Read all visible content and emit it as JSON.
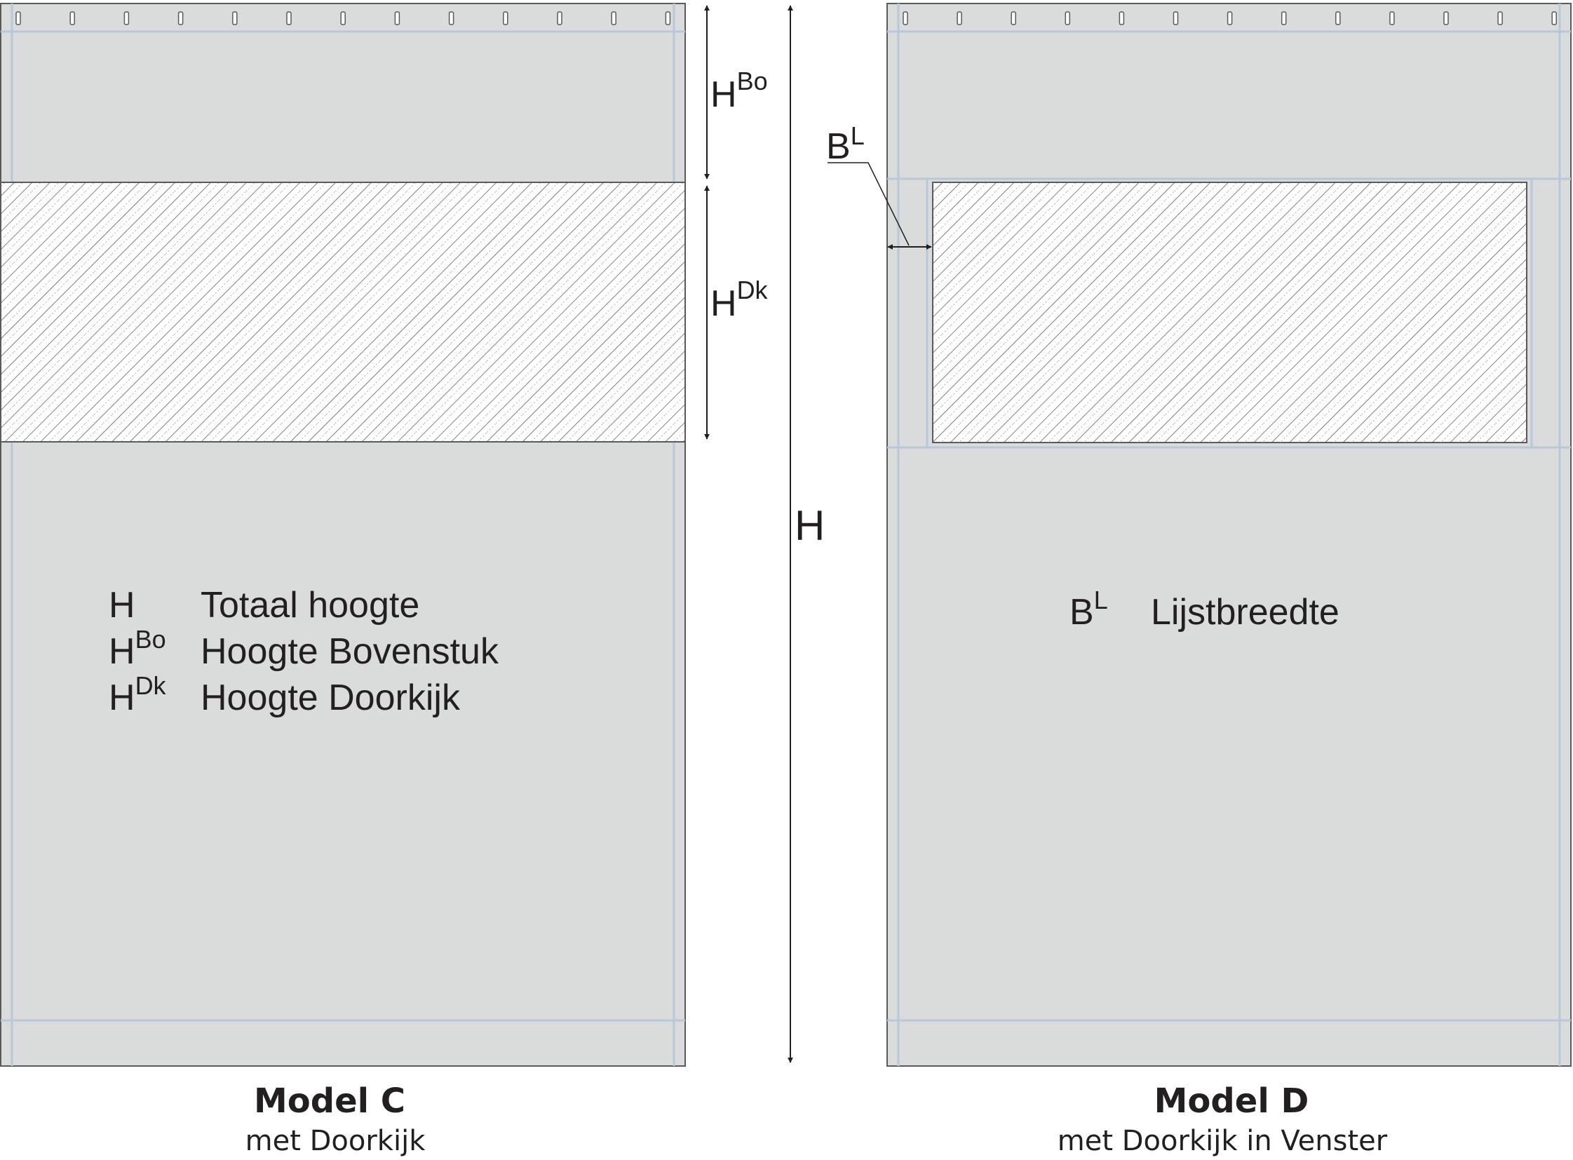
{
  "colors": {
    "panel": "#dadbdb",
    "seam": "#b7c9d9",
    "outline": "#5a5a5a",
    "hatch": "#4a4a4a",
    "window_fill": "#ffffff",
    "text": "#231f20"
  },
  "dimensions": {
    "total": {
      "main": "H",
      "sup": ""
    },
    "top_piece": {
      "main": "H",
      "sup": "Bo"
    },
    "see_through": {
      "main": "H",
      "sup": "Dk"
    },
    "frame_width": {
      "main": "B",
      "sup": "L"
    }
  },
  "legend_c": [
    {
      "main": "H",
      "sup": "",
      "text": "Totaal hoogte"
    },
    {
      "main": "H",
      "sup": "Bo",
      "text": "Hoogte Bovenstuk"
    },
    {
      "main": "H",
      "sup": "Dk",
      "text": "Hoogte Doorkijk"
    }
  ],
  "legend_d": [
    {
      "main": "B",
      "sup": "L",
      "text": "Lijstbreedte"
    }
  ],
  "models": [
    {
      "title": "Model C",
      "subtitle": "met Doorkijk"
    },
    {
      "title": "Model D",
      "subtitle": "met Doorkijk in Venster"
    }
  ]
}
